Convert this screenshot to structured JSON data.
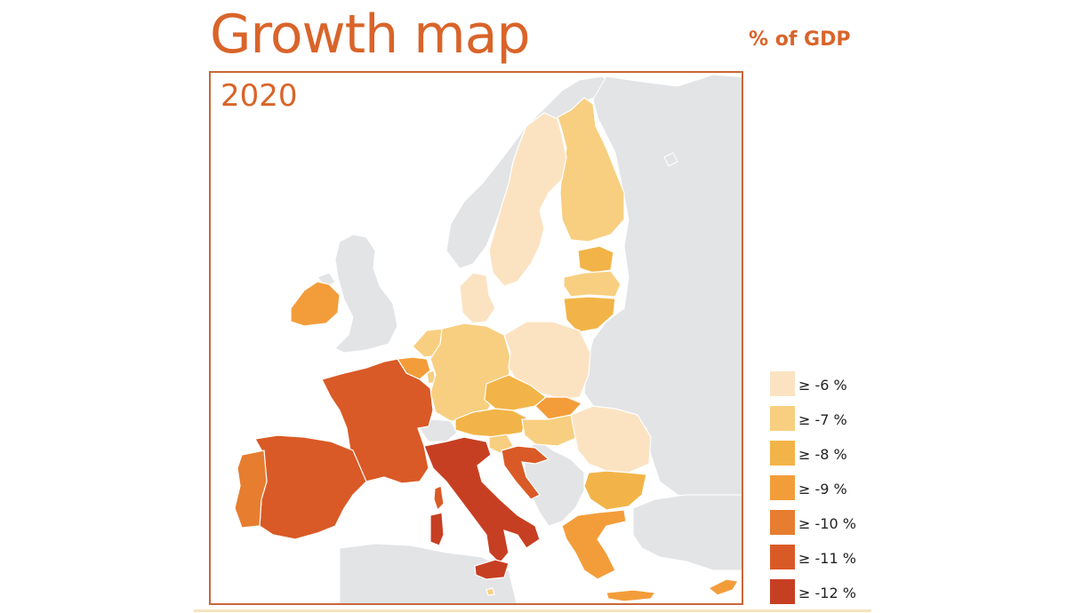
{
  "header": {
    "title": "Growth map",
    "unit": "% of GDP",
    "year": "2020"
  },
  "legend": {
    "items": [
      {
        "label": "≥ -6 %",
        "color": "#fbe3c2"
      },
      {
        "label": "≥ -7 %",
        "color": "#f8cf80"
      },
      {
        "label": "≥ -8 %",
        "color": "#f2b448"
      },
      {
        "label": "≥ -9 %",
        "color": "#f39d3a"
      },
      {
        "label": "≥ -10 %",
        "color": "#e77d2e"
      },
      {
        "label": "≥ -11 %",
        "color": "#d95a26"
      },
      {
        "label": "≥ -12 %",
        "color": "#c73f22"
      }
    ]
  },
  "map": {
    "non_eu_color": "#e3e4e6",
    "countries": [
      {
        "name": "Finland",
        "class": 1
      },
      {
        "name": "Sweden",
        "class": 0
      },
      {
        "name": "Estonia",
        "class": 2
      },
      {
        "name": "Latvia",
        "class": 1
      },
      {
        "name": "Lithuania",
        "class": 2
      },
      {
        "name": "Denmark",
        "class": 0
      },
      {
        "name": "Ireland",
        "class": 3
      },
      {
        "name": "Netherlands",
        "class": 1
      },
      {
        "name": "Belgium",
        "class": 3
      },
      {
        "name": "Luxembourg",
        "class": 1
      },
      {
        "name": "Germany",
        "class": 1
      },
      {
        "name": "Poland",
        "class": 0
      },
      {
        "name": "Czechia",
        "class": 2
      },
      {
        "name": "Slovakia",
        "class": 3
      },
      {
        "name": "Austria",
        "class": 2
      },
      {
        "name": "Hungary",
        "class": 1
      },
      {
        "name": "Romania",
        "class": 0
      },
      {
        "name": "Bulgaria",
        "class": 2
      },
      {
        "name": "Slovenia",
        "class": 1
      },
      {
        "name": "Croatia",
        "class": 5
      },
      {
        "name": "Italy",
        "class": 6
      },
      {
        "name": "France",
        "class": 5
      },
      {
        "name": "Spain",
        "class": 5
      },
      {
        "name": "Portugal",
        "class": 4
      },
      {
        "name": "Greece",
        "class": 3
      },
      {
        "name": "Cyprus",
        "class": 3
      },
      {
        "name": "Malta",
        "class": 1
      }
    ]
  }
}
